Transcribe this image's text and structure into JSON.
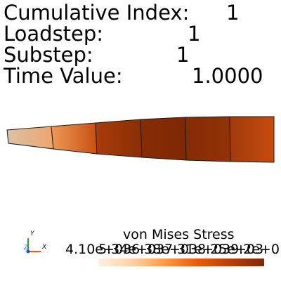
{
  "info": {
    "cumulative_index_label": "Cumulative Index:",
    "cumulative_index_value": "1",
    "loadstep_label": "Loadstep:",
    "loadstep_value": "1",
    "substep_label": "Substep:",
    "substep_value": "1",
    "time_value_label": "Time Value:",
    "time_value_value": "1.0000"
  },
  "axes": {
    "x": "X",
    "y": "Y",
    "z": "Z"
  },
  "legend": {
    "title": "von Mises Stress",
    "ticks": [
      "4.10e+03",
      "5.34e+03",
      "6.38e+03",
      "7.31e+03",
      "8.25e+03",
      "9.2e+0"
    ]
  },
  "colors": {
    "colormap_low": "#fdf0e4",
    "colormap_high": "#7f2704",
    "element_edges": "#1a1a1a"
  }
}
